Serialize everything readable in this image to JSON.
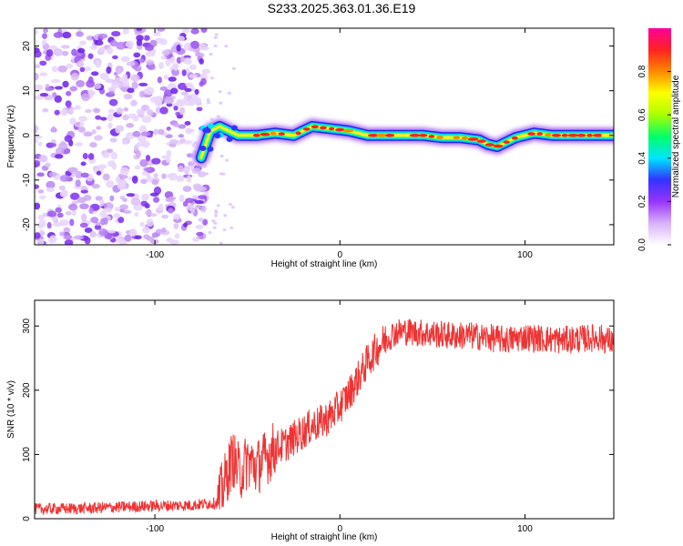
{
  "figure_title": "S233.2025.363.01.36.E19",
  "chart_data": [
    {
      "type": "heatmap",
      "title": "",
      "xlabel": "Height of straight line (km)",
      "ylabel": "Frequency (Hz)",
      "xlim": [
        -165,
        148
      ],
      "ylim": [
        -24.5,
        24
      ],
      "xticks": [
        -100,
        0,
        100
      ],
      "xtick_labels": [
        "-100",
        "0",
        "100"
      ],
      "yticks": [
        -20,
        -10,
        0,
        10,
        20
      ],
      "ytick_labels": [
        "-20",
        "-10",
        "0",
        "10",
        "20"
      ],
      "noise_region_x": [
        -165,
        -72
      ],
      "signal_track": {
        "x": [
          -75,
          -70,
          -65,
          -60,
          -55,
          -45,
          -35,
          -25,
          -15,
          -5,
          5,
          15,
          25,
          35,
          45,
          55,
          65,
          75,
          80,
          85,
          90,
          95,
          105,
          115,
          125,
          135,
          148
        ],
        "freq": [
          -5,
          1,
          2,
          1,
          0,
          0,
          0.5,
          0,
          2,
          1.5,
          1,
          0,
          0,
          0,
          0,
          -0.5,
          -0.5,
          -1,
          -2,
          -2.5,
          -1.5,
          -0.5,
          0.5,
          0,
          0,
          0,
          0
        ]
      },
      "colorbar": {
        "label": "Normalized spectral amplitude",
        "range": [
          0,
          1
        ],
        "ticks": [
          0.0,
          0.2,
          0.4,
          0.6,
          0.8
        ],
        "tick_labels": [
          "0.0",
          "0.2",
          "0.4",
          "0.6",
          "0.8"
        ],
        "colors": [
          "#ffffff",
          "#d8b0f8",
          "#9933ff",
          "#3333ff",
          "#00e5ff",
          "#00ff66",
          "#aaff00",
          "#ffff00",
          "#ff8800",
          "#ff2222",
          "#ff0099"
        ]
      }
    },
    {
      "type": "line",
      "title": "",
      "xlabel": "Height of straight line (km)",
      "ylabel": "SNR (10 * v/v)",
      "xlim": [
        -165,
        148
      ],
      "ylim": [
        0,
        340
      ],
      "xticks": [
        -100,
        0,
        100
      ],
      "xtick_labels": [
        "-100",
        "0",
        "100"
      ],
      "yticks": [
        0,
        100,
        200,
        300
      ],
      "ytick_labels": [
        "0",
        "100",
        "200",
        "300"
      ],
      "color": "#ee3333",
      "series": [
        {
          "name": "SNR",
          "x": [
            -165,
            -140,
            -120,
            -100,
            -80,
            -66,
            -62,
            -58,
            -54,
            -50,
            -45,
            -40,
            -35,
            -30,
            -25,
            -20,
            -15,
            -10,
            -5,
            0,
            5,
            10,
            15,
            20,
            25,
            30,
            35,
            40,
            50,
            60,
            70,
            80,
            90,
            100,
            110,
            120,
            130,
            140,
            148
          ],
          "values": [
            15,
            16,
            18,
            20,
            21,
            25,
            60,
            95,
            70,
            90,
            80,
            95,
            110,
            115,
            125,
            135,
            145,
            150,
            160,
            175,
            195,
            220,
            245,
            265,
            280,
            290,
            292,
            290,
            288,
            285,
            285,
            282,
            278,
            283,
            280,
            278,
            280,
            282,
            275
          ]
        }
      ]
    }
  ]
}
